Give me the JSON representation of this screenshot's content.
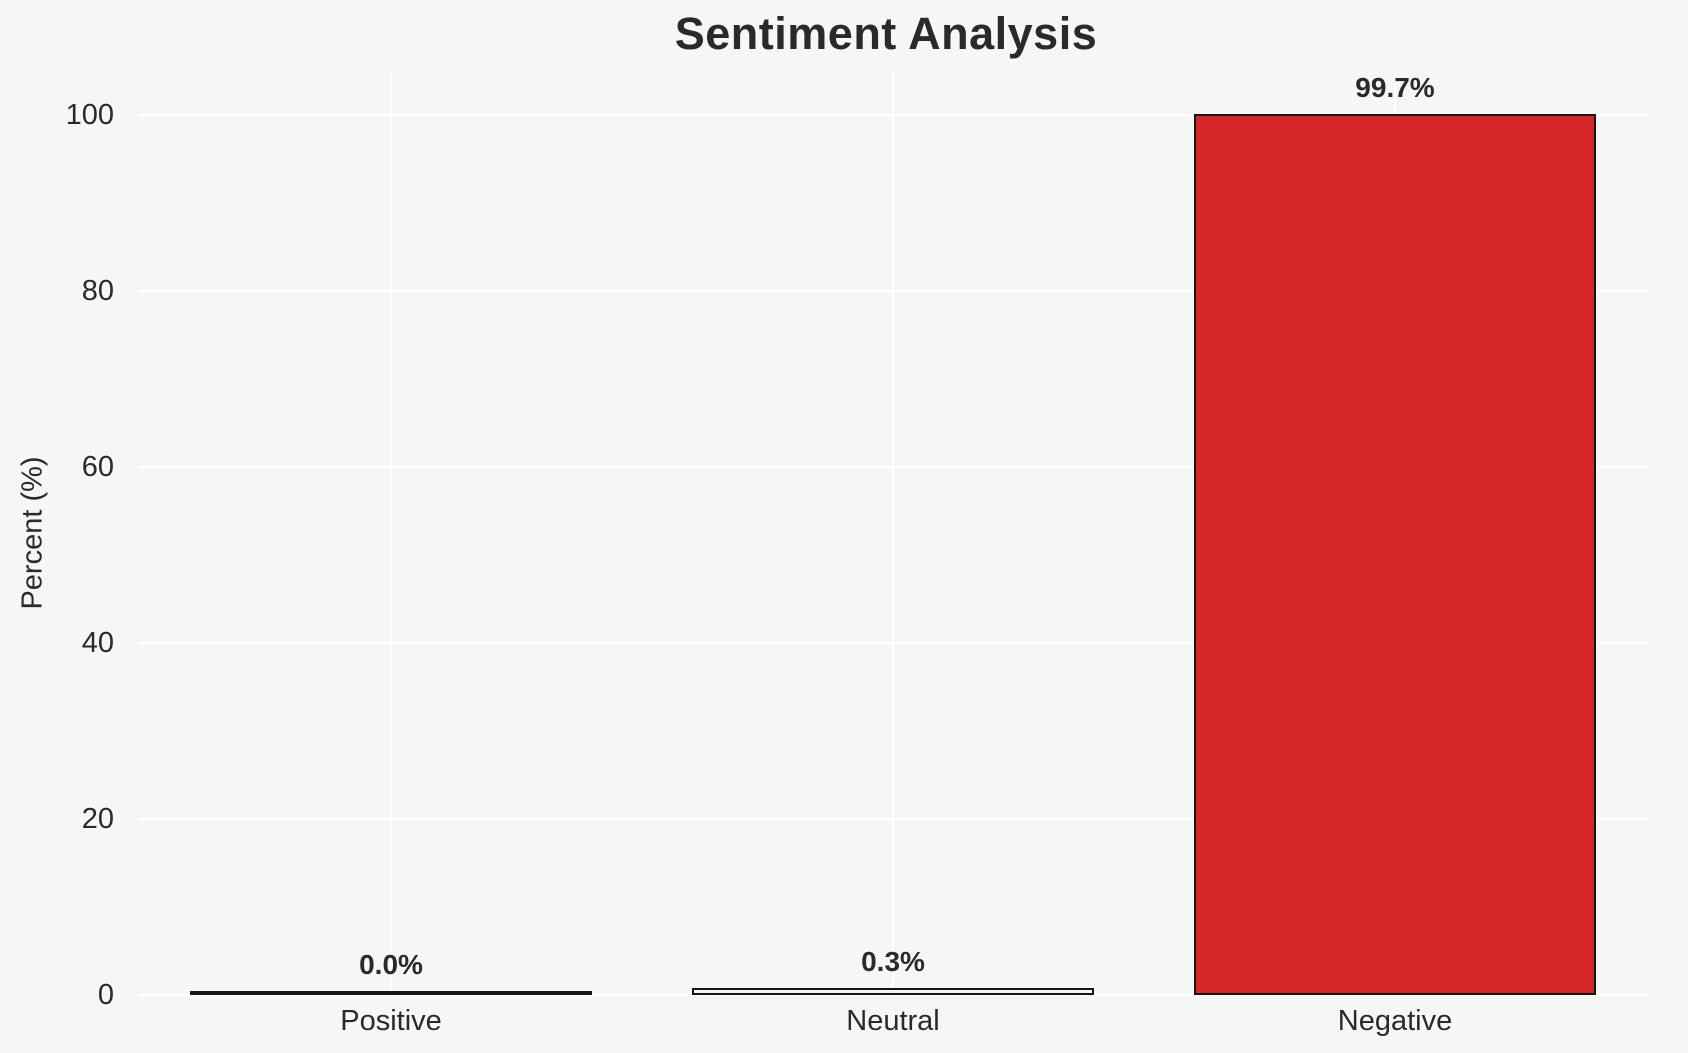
{
  "chart_data": {
    "type": "bar",
    "title": "Sentiment Analysis",
    "xlabel": "",
    "ylabel": "Percent (%)",
    "categories": [
      "Positive",
      "Neutral",
      "Negative"
    ],
    "values": [
      0.0,
      0.3,
      99.7
    ],
    "value_labels": [
      "0.0%",
      "0.3%",
      "99.7%"
    ],
    "yticks": [
      0,
      20,
      40,
      60,
      80,
      100
    ],
    "ylim": [
      0,
      105
    ],
    "grid": "horizontal and vertical white gridlines",
    "legend_position": "none",
    "colors": {
      "figure_background": "#f5f6f6",
      "gridline": "#ffffff",
      "text": "#2a2a2a",
      "bar_edge": "#161616",
      "bar_fills": [
        "#f5f6f6",
        "#f5f6f6",
        "#d62728"
      ]
    }
  }
}
